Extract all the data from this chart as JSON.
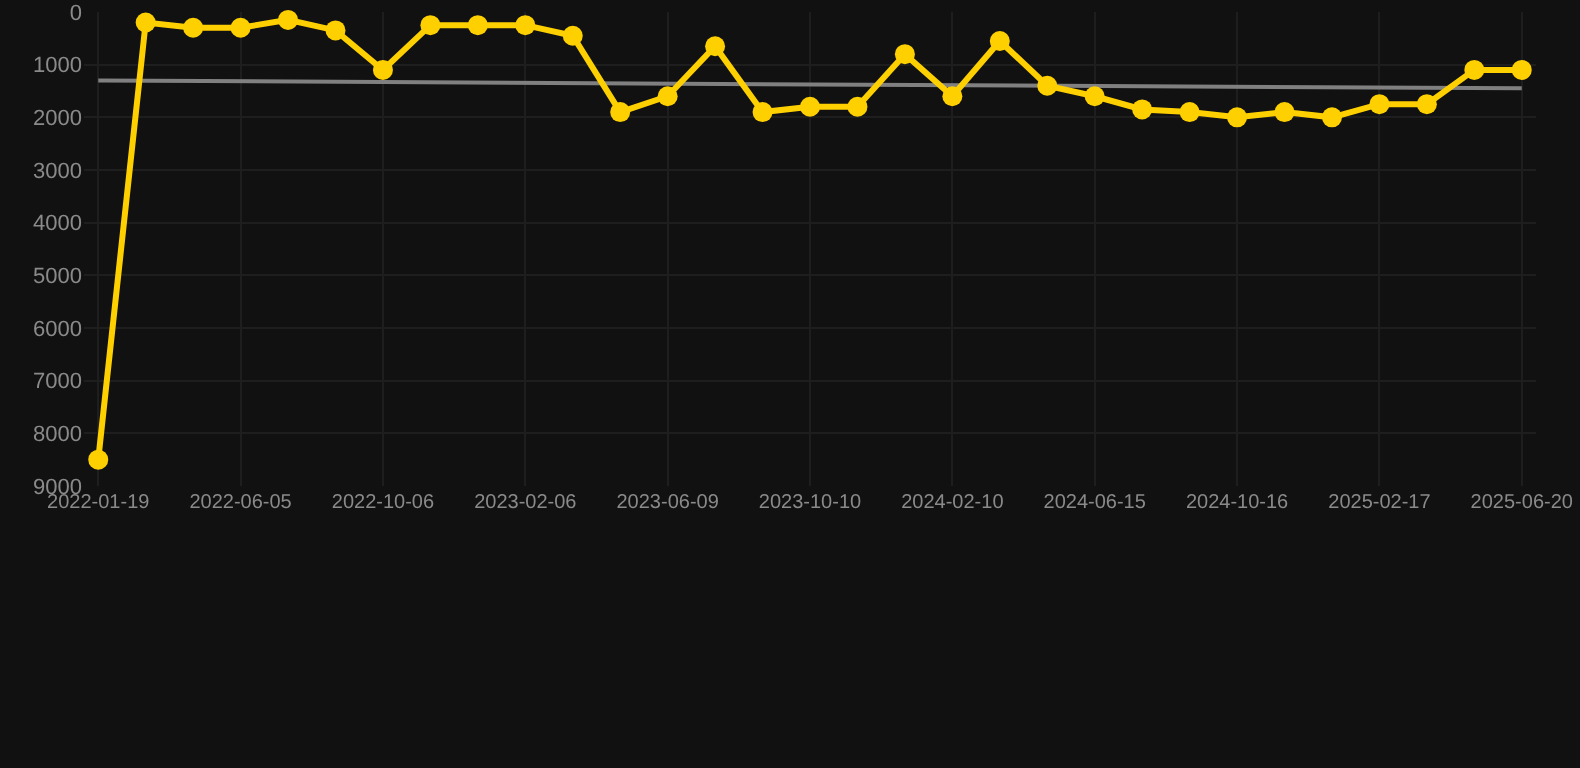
{
  "chart_data": {
    "type": "line",
    "categories": [
      "2022-01-19",
      null,
      null,
      "2022-06-05",
      null,
      null,
      "2022-10-06",
      null,
      null,
      "2023-02-06",
      null,
      null,
      "2023-06-09",
      null,
      null,
      "2023-10-10",
      null,
      null,
      "2024-02-10",
      null,
      null,
      "2024-06-15",
      null,
      null,
      "2024-10-16",
      null,
      null,
      "2025-02-17",
      null,
      null,
      "2025-06-20"
    ],
    "series": [
      {
        "color": "#808080",
        "marker": "none",
        "values": [
          1300,
          null,
          null,
          null,
          null,
          null,
          null,
          null,
          null,
          null,
          null,
          null,
          null,
          null,
          null,
          null,
          null,
          null,
          null,
          null,
          null,
          null,
          null,
          null,
          null,
          null,
          null,
          null,
          null,
          null,
          1450
        ]
      },
      {
        "color": "#ffd000",
        "marker": "circle",
        "values": [
          8500,
          200,
          300,
          300,
          150,
          350,
          1100,
          250,
          250,
          250,
          450,
          1900,
          1600,
          650,
          1900,
          1800,
          1800,
          800,
          1600,
          550,
          1400,
          1600,
          1850,
          1900,
          2000,
          1900,
          2000,
          1750,
          1750,
          1100,
          1100
        ]
      }
    ],
    "ylim": [
      9000,
      0
    ],
    "yticks": [
      0,
      1000,
      2000,
      3000,
      4000,
      5000,
      6000,
      7000,
      8000,
      9000
    ],
    "grid": true,
    "line_style": "solid"
  }
}
